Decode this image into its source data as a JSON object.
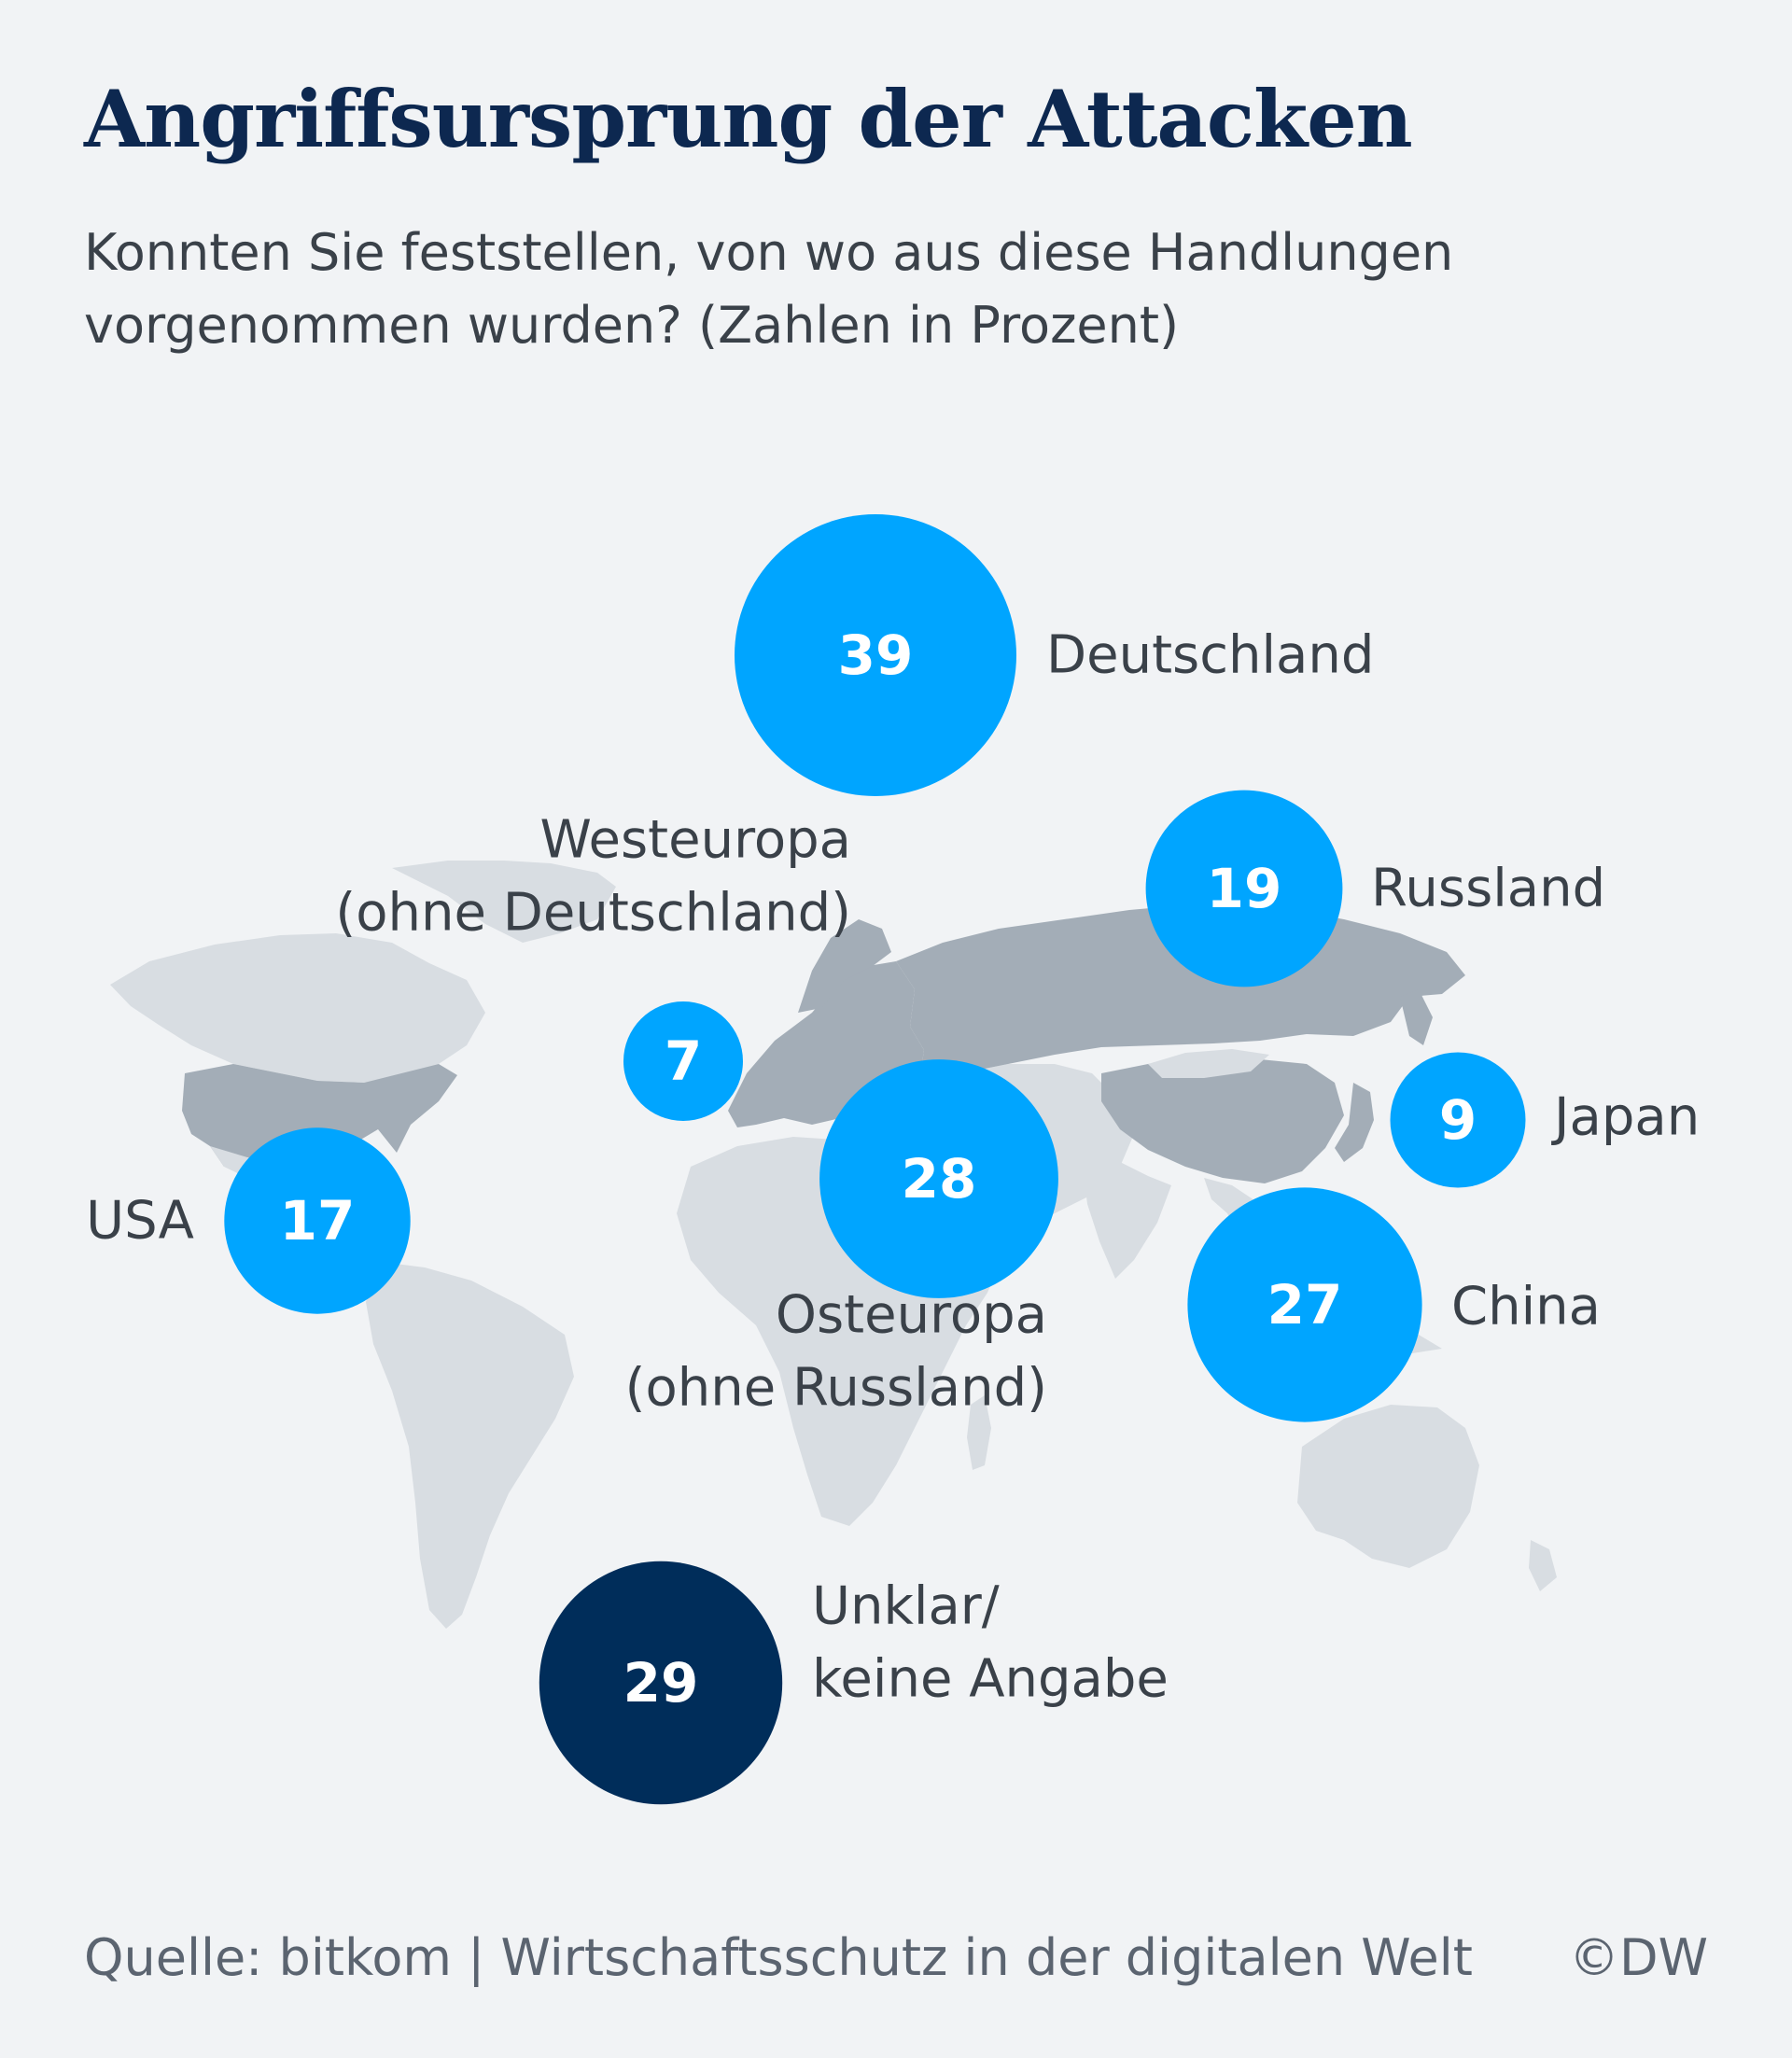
{
  "title": "Angriffsursprung der Attacken",
  "subtitle": "Konnten Sie feststellen, von wo aus diese Handlungen vorgenommen wurden? (Zahlen in Prozent)",
  "source": "Quelle: bitkom | Wirtschaftsschutz in der digitalen Welt",
  "copyright": "©DW",
  "colors": {
    "background": "#f1f3f5",
    "bubble": "#00a5ff",
    "bubble_unclear": "#002d5a",
    "land_light": "#d8dde2",
    "land_highlight": "#a3adb7",
    "title": "#0d2850",
    "text": "#3a4149"
  },
  "chart_data": {
    "type": "bubble-map",
    "unit": "Prozent",
    "points": [
      {
        "label": "Deutschland",
        "label_lines": [
          "Deutschland"
        ],
        "value": 39,
        "value_label": "39",
        "color": "#00a5ff"
      },
      {
        "label": "Russland",
        "label_lines": [
          "Russland"
        ],
        "value": 19,
        "value_label": "19",
        "color": "#00a5ff"
      },
      {
        "label": "Westeuropa (ohne Deutschland)",
        "label_lines": [
          "Westeuropa",
          "(ohne Deutschland)"
        ],
        "value": 7,
        "value_label": "7",
        "color": "#00a5ff"
      },
      {
        "label": "Japan",
        "label_lines": [
          "Japan"
        ],
        "value": 9,
        "value_label": "9",
        "color": "#00a5ff"
      },
      {
        "label": "USA",
        "label_lines": [
          "USA"
        ],
        "value": 17,
        "value_label": "17",
        "color": "#00a5ff"
      },
      {
        "label": "Osteuropa (ohne Russland)",
        "label_lines": [
          "Osteuropa",
          "(ohne Russland)"
        ],
        "value": 28,
        "value_label": "28",
        "color": "#00a5ff"
      },
      {
        "label": "China",
        "label_lines": [
          "China"
        ],
        "value": 27,
        "value_label": "27",
        "color": "#00a5ff"
      },
      {
        "label": "Unklar/keine Angabe",
        "label_lines": [
          "Unklar/",
          "keine Angabe"
        ],
        "value": 29,
        "value_label": "29",
        "color": "#002d5a"
      }
    ]
  }
}
